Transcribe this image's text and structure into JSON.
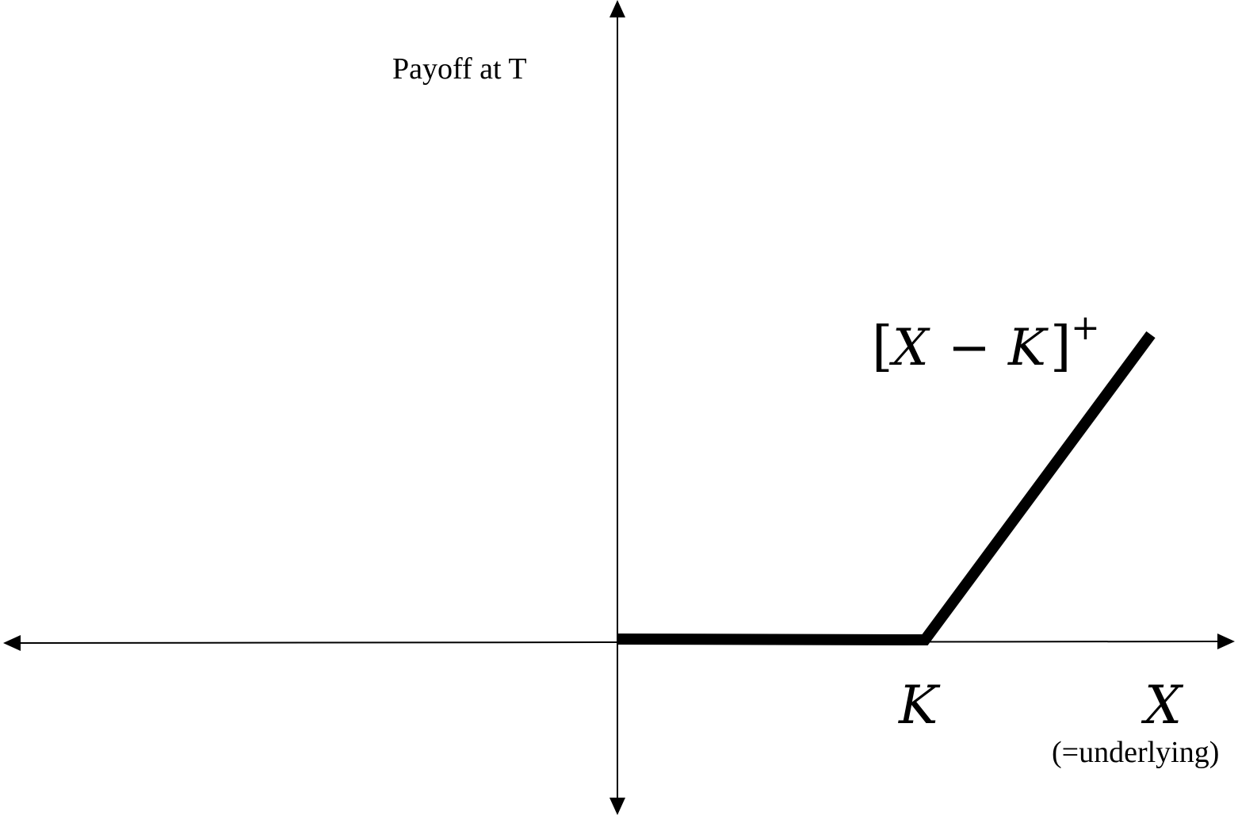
{
  "labels": {
    "y_axis": "Payoff at T",
    "strike": "K",
    "x_axis": "X",
    "x_axis_note": "(=underlying)",
    "payoff_formula": {
      "open_bracket": "[",
      "x": "X",
      "minus": "−",
      "k": "K",
      "close_bracket": "]",
      "superscript": "+"
    }
  },
  "colors": {
    "ink": "#000000",
    "background": "#ffffff"
  }
}
